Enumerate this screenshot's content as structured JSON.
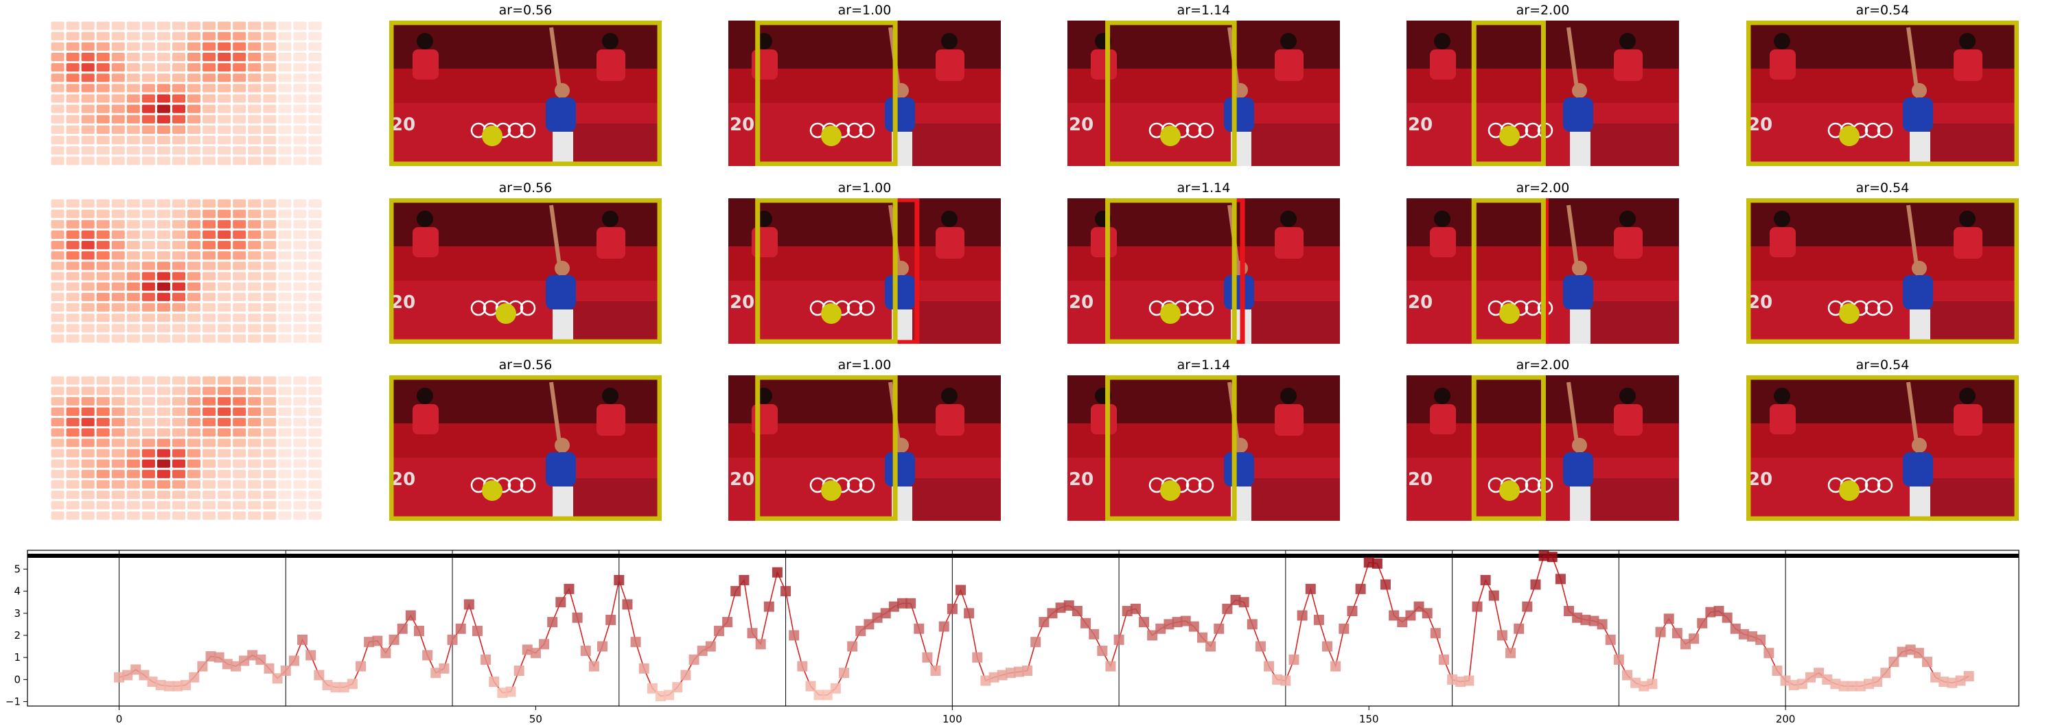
{
  "panel_titles": [
    [
      "",
      "ar=0.56",
      "ar=1.00",
      "ar=1.14",
      "ar=2.00",
      "ar=0.54"
    ],
    [
      "",
      "ar=0.56",
      "ar=1.00",
      "ar=1.14",
      "ar=2.00",
      "ar=0.54"
    ],
    [
      "",
      "ar=0.56",
      "ar=1.00",
      "ar=1.14",
      "ar=2.00",
      "ar=0.54"
    ]
  ],
  "photo_text": "20",
  "colors": {
    "box_yellow": "#c8be0a",
    "box_red": "#e8141a",
    "ball": "#cfc80c",
    "line": "#d62220",
    "background_red": "#b0101c",
    "shirt_blue": "#1f3fb0"
  },
  "chart_data": {
    "type": "line",
    "title": "",
    "xlabel": "",
    "ylabel": "",
    "xlim": [
      -11,
      228
    ],
    "ylim": [
      -1.2,
      5.85
    ],
    "xticks": [
      0,
      50,
      100,
      150,
      200
    ],
    "yticks": [
      -1,
      0,
      1,
      2,
      3,
      4,
      5
    ],
    "reference_line_y": 5.6,
    "vertical_lines_x": [
      0,
      20,
      40,
      60,
      80,
      100,
      120,
      140,
      160,
      180,
      200
    ],
    "series": [
      {
        "marker": "square",
        "values": [
          0.1,
          0.2,
          0.45,
          0.2,
          -0.1,
          -0.25,
          -0.3,
          -0.3,
          -0.25,
          0.1,
          0.6,
          1.05,
          1.0,
          0.7,
          0.6,
          0.85,
          1.1,
          0.9,
          0.5,
          0.05,
          0.4,
          0.85,
          1.8,
          1.1,
          0.2,
          -0.25,
          -0.35,
          -0.35,
          -0.2,
          0.6,
          1.7,
          1.75,
          1.2,
          1.8,
          2.3,
          2.9,
          2.2,
          1.1,
          0.3,
          0.5,
          1.8,
          2.3,
          3.4,
          2.2,
          0.9,
          -0.1,
          -0.6,
          -0.55,
          0.4,
          1.35,
          1.2,
          1.6,
          2.6,
          3.5,
          4.1,
          2.8,
          1.3,
          0.6,
          1.5,
          2.7,
          4.5,
          3.4,
          1.7,
          0.5,
          -0.4,
          -0.75,
          -0.7,
          -0.35,
          0.2,
          0.9,
          1.3,
          1.5,
          2.2,
          2.6,
          4.0,
          4.5,
          2.1,
          1.6,
          3.3,
          4.85,
          4.0,
          2.0,
          0.6,
          -0.3,
          -0.7,
          -0.7,
          -0.4,
          0.3,
          1.5,
          2.2,
          2.5,
          2.8,
          3.0,
          3.3,
          3.45,
          3.45,
          2.3,
          1.0,
          0.4,
          2.4,
          3.2,
          4.05,
          3.0,
          1.0,
          -0.05,
          0.1,
          0.2,
          0.3,
          0.35,
          0.4,
          1.7,
          2.6,
          3.0,
          3.25,
          3.35,
          3.1,
          2.55,
          2.05,
          1.3,
          0.6,
          1.8,
          3.1,
          3.2,
          2.6,
          2.0,
          2.3,
          2.5,
          2.6,
          2.65,
          2.4,
          1.9,
          1.5,
          2.3,
          3.2,
          3.6,
          3.5,
          2.5,
          1.5,
          0.6,
          0.0,
          -0.05,
          0.9,
          2.9,
          4.1,
          2.7,
          1.5,
          0.6,
          2.3,
          3.1,
          4.1,
          5.3,
          5.25,
          4.3,
          2.9,
          2.6,
          2.9,
          3.3,
          3.0,
          2.1,
          0.9,
          0.0,
          -0.1,
          -0.05,
          3.3,
          4.5,
          3.8,
          2.0,
          1.2,
          2.3,
          3.3,
          4.3,
          5.6,
          5.55,
          4.55,
          3.1,
          2.8,
          2.7,
          2.65,
          2.5,
          1.8,
          0.9,
          0.2,
          -0.15,
          -0.3,
          -0.2,
          2.15,
          2.75,
          2.1,
          1.6,
          1.85,
          2.55,
          3.05,
          3.1,
          2.8,
          2.3,
          2.05,
          1.95,
          1.8,
          1.2,
          0.4,
          -0.05,
          -0.25,
          -0.2,
          0.1,
          0.3,
          0.0,
          -0.2,
          -0.3,
          -0.3,
          -0.3,
          -0.2,
          -0.1,
          0.3,
          0.8,
          1.25,
          1.35,
          1.2,
          0.8,
          0.1,
          -0.1,
          -0.15,
          -0.05,
          0.15
        ]
      }
    ]
  }
}
